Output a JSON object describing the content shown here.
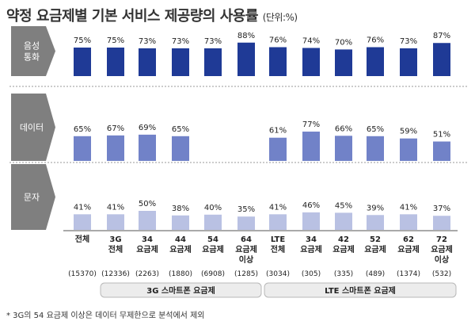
{
  "title": "약정 요금제별 기본 서비스 제공량의 사용률",
  "unit": "(단위:%)",
  "footnote": "* 3G의 54 요금제 이상은 데이터 무제한으로 분석에서 제외",
  "chart_data": {
    "type": "bar",
    "categories": [
      {
        "line1": "전체",
        "line2": "",
        "n": "(15370)"
      },
      {
        "line1": "3G",
        "line2": "전체",
        "n": "(12336)"
      },
      {
        "line1": "34",
        "line2": "요금제",
        "n": "(2263)"
      },
      {
        "line1": "44",
        "line2": "요금제",
        "n": "(1880)"
      },
      {
        "line1": "54",
        "line2": "요금제",
        "n": "(6908)"
      },
      {
        "line1": "64",
        "line2": "요금제",
        "line3": "이상",
        "n": "(1285)"
      },
      {
        "line1": "LTE",
        "line2": "전체",
        "n": "(3034)"
      },
      {
        "line1": "34",
        "line2": "요금제",
        "n": "(305)"
      },
      {
        "line1": "42",
        "line2": "요금제",
        "n": "(335)"
      },
      {
        "line1": "52",
        "line2": "요금제",
        "n": "(489)"
      },
      {
        "line1": "62",
        "line2": "요금제",
        "n": "(1374)"
      },
      {
        "line1": "72",
        "line2": "요금제",
        "line3": "이상",
        "n": "(532)"
      }
    ],
    "series": [
      {
        "name": "음성 통화",
        "label_lines": [
          "음성",
          "통화"
        ],
        "color": "#1f3a96",
        "values": [
          75,
          75,
          73,
          73,
          73,
          88,
          76,
          74,
          70,
          76,
          73,
          87
        ]
      },
      {
        "name": "데이터",
        "label_lines": [
          "데이터"
        ],
        "color": "#7182c8",
        "values": [
          65,
          67,
          69,
          65,
          null,
          null,
          61,
          77,
          66,
          65,
          59,
          51
        ]
      },
      {
        "name": "문자",
        "label_lines": [
          "문자"
        ],
        "color": "#b9c1e3",
        "values": [
          41,
          41,
          50,
          38,
          40,
          35,
          41,
          46,
          45,
          39,
          41,
          37
        ]
      }
    ],
    "groups": [
      {
        "label": "3G 스마트폰 요금제"
      },
      {
        "label": "LTE 스마트폰 요금제"
      }
    ],
    "value_suffix": "%"
  }
}
